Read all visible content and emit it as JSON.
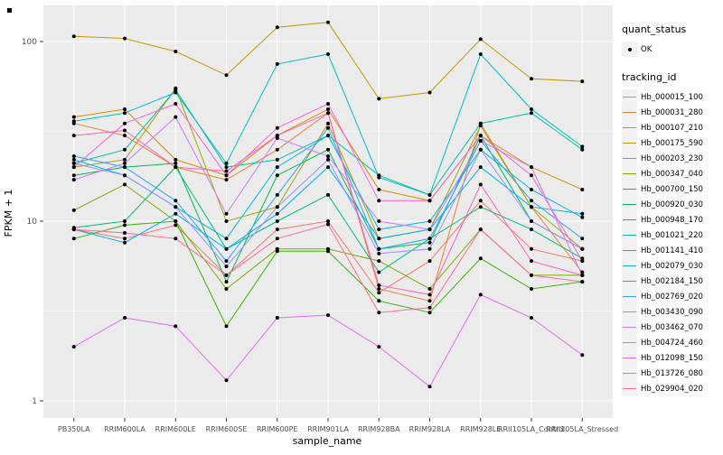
{
  "figure": {
    "y_axis_title": "FPKM + 1",
    "x_axis_title": "sample_name"
  },
  "legend": {
    "quant_status_title": "quant_status",
    "quant_items": [
      {
        "label": "OK",
        "shape": "point"
      }
    ],
    "tracking_title": "tracking_id"
  },
  "chart_data": {
    "type": "line",
    "title": "",
    "xlabel": "sample_name",
    "ylabel": "FPKM + 1",
    "y_scale": "log10",
    "ylim": [
      0.8,
      160
    ],
    "y_ticks": [
      1,
      10,
      100
    ],
    "y_minor": [
      3.162,
      31.62
    ],
    "grid": true,
    "legend_position": "right",
    "panel_bg": "#EBEBEB",
    "grid_color": "#FFFFFF",
    "point_color": "#000000",
    "categories": [
      "PB350LA",
      "RRIM600LA",
      "RRIM600LE",
      "RRIM600SE",
      "RRIM600PE",
      "RRIM901LA",
      "RRIM928BA",
      "RRIM928LA",
      "RRIM928LE",
      "RRII105LA_Control",
      "RRII105LA_Stressed"
    ],
    "series": [
      {
        "name": "Hb_000015_100",
        "color": "#F8766D",
        "values": [
          9.0,
          8.0,
          9.5,
          5.0,
          9.0,
          10.0,
          4.0,
          6.0,
          13.0,
          7.0,
          6.0
        ]
      },
      {
        "name": "Hb_000031_280",
        "color": "#EA8331",
        "values": [
          35,
          30,
          20,
          17,
          25,
          40,
          4.2,
          3.6,
          35,
          12,
          5.2
        ]
      },
      {
        "name": "Hb_000107_210",
        "color": "#D89000",
        "values": [
          38,
          42,
          22,
          18,
          30,
          42,
          15,
          13,
          30,
          20,
          15
        ]
      },
      {
        "name": "Hb_000175_590",
        "color": "#C09B00",
        "values": [
          107,
          104,
          88,
          65,
          120,
          128,
          48,
          52,
          103,
          62,
          60
        ]
      },
      {
        "name": "Hb_000203_230",
        "color": "#A3A500",
        "values": [
          20,
          22,
          55,
          10,
          12,
          35,
          8,
          9,
          34,
          12,
          7
        ]
      },
      {
        "name": "Hb_000347_040",
        "color": "#7CAE00",
        "values": [
          11.5,
          16,
          10,
          4.2,
          7,
          7,
          6,
          4.2,
          9,
          5,
          5
        ]
      },
      {
        "name": "Hb_000700_150",
        "color": "#39B600",
        "values": [
          8,
          9.5,
          10,
          2.6,
          6.8,
          6.8,
          3.6,
          3.1,
          6.2,
          4.2,
          4.6
        ]
      },
      {
        "name": "Hb_000920_030",
        "color": "#00BB4E",
        "values": [
          18,
          20,
          21,
          4.6,
          18,
          25,
          7,
          7.6,
          30,
          10,
          7
        ]
      },
      {
        "name": "Hb_000948_170",
        "color": "#00BF7D",
        "values": [
          9.2,
          10,
          20,
          7,
          10,
          14,
          5.2,
          8,
          12,
          9,
          6.2
        ]
      },
      {
        "name": "Hb_001021_220",
        "color": "#00C1A3",
        "values": [
          21,
          25,
          54,
          20,
          22,
          30,
          18,
          14,
          35,
          40,
          25
        ]
      },
      {
        "name": "Hb_001141_410",
        "color": "#00BFC4",
        "values": [
          36,
          40,
          52,
          21,
          75,
          85,
          17.5,
          14,
          85,
          42,
          26
        ]
      },
      {
        "name": "Hb_002079_030",
        "color": "#00BAE0",
        "values": [
          22,
          18,
          12,
          8,
          20,
          30,
          9,
          10,
          25,
          15,
          10.5
        ]
      },
      {
        "name": "Hb_002184_150",
        "color": "#00B0F6",
        "values": [
          9,
          7.6,
          11,
          7,
          11,
          20,
          8,
          9,
          20,
          12,
          11
        ]
      },
      {
        "name": "Hb_002769_020",
        "color": "#35A2FF",
        "values": [
          23,
          20,
          13,
          6,
          14,
          33,
          7,
          8,
          28,
          13,
          8
        ]
      },
      {
        "name": "Hb_003430_090",
        "color": "#9590FF",
        "values": [
          21,
          18,
          12,
          5.6,
          12,
          22,
          6.6,
          7,
          25,
          10,
          7
        ]
      },
      {
        "name": "Hb_003462_070",
        "color": "#C77CFF",
        "values": [
          17,
          21,
          38,
          11,
          29,
          23,
          10,
          9,
          28,
          20,
          5
        ]
      },
      {
        "name": "Hb_004724_460",
        "color": "#E76BF3",
        "values": [
          2.0,
          2.9,
          2.6,
          1.3,
          2.9,
          3.0,
          2.0,
          1.2,
          3.9,
          2.9,
          1.8
        ]
      },
      {
        "name": "Hb_012098_150",
        "color": "#FA62DB",
        "values": [
          20,
          35,
          45,
          18,
          33,
          45,
          13,
          13,
          30,
          18,
          6
        ]
      },
      {
        "name": "Hb_013726_080",
        "color": "#FF62BC",
        "values": [
          30,
          32,
          20,
          19,
          30,
          40,
          4.4,
          3.9,
          16,
          6,
          5
        ]
      },
      {
        "name": "Hb_029904_020",
        "color": "#FF6A98",
        "values": [
          9,
          8.6,
          8,
          5,
          8,
          9.6,
          3.1,
          3.3,
          9,
          5,
          4.6
        ]
      }
    ]
  }
}
